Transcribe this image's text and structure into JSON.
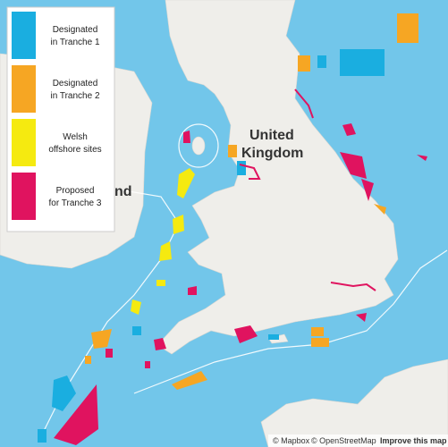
{
  "legend": {
    "items": [
      {
        "lines": [
          "Designated",
          "in Tranche 1"
        ],
        "color": "#1aaee0"
      },
      {
        "lines": [
          "Designated",
          "in Tranche 2"
        ],
        "color": "#f6a623"
      },
      {
        "lines": [
          "Welsh",
          "offshore sites"
        ],
        "color": "#f5ea10"
      },
      {
        "lines": [
          "Proposed",
          "for Tranche 3"
        ],
        "color": "#e0135f"
      }
    ]
  },
  "map": {
    "labels": [
      "United",
      "Kingdom",
      "nd"
    ]
  },
  "attribution": {
    "mapbox": "© Mapbox",
    "osm": "© OpenStreetMap",
    "improve": "Improve this map"
  }
}
